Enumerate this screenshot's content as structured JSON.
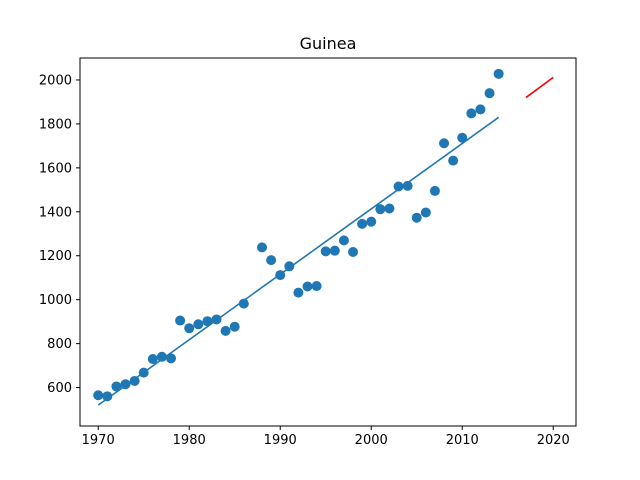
{
  "chart_data": {
    "type": "scatter",
    "title": "Guinea",
    "xlabel": "",
    "ylabel": "",
    "xlim": [
      1968,
      2022.5
    ],
    "ylim": [
      425,
      2100
    ],
    "x_ticks": [
      "1970",
      "1980",
      "1990",
      "2000",
      "2010",
      "2020"
    ],
    "y_ticks": [
      "600",
      "800",
      "1000",
      "1200",
      "1400",
      "1600",
      "1800",
      "2000"
    ],
    "grid": false,
    "colors": {
      "points": "#1f77b4",
      "fit_line": "#1f77b4",
      "forecast_line": "#ff0000"
    },
    "series": [
      {
        "kind": "points",
        "x": [
          1970,
          1971,
          1972,
          1973,
          1974,
          1975,
          1976,
          1977,
          1978,
          1979,
          1980,
          1981,
          1982,
          1983,
          1984,
          1985,
          1986,
          1987,
          1988,
          1989,
          1990,
          1991,
          1992,
          1993,
          1994,
          1995,
          1996,
          1997,
          1998,
          1999,
          2000,
          2001,
          2002,
          2003,
          2004,
          2005,
          2006,
          2007,
          2008,
          2009,
          2010,
          2011,
          2012,
          2013,
          2014
        ],
        "y": [
          565,
          560,
          605,
          615,
          630,
          668,
          730,
          740,
          733,
          905,
          870,
          888,
          902,
          910,
          858,
          877,
          982,
          null,
          1238,
          1180,
          1112,
          1152,
          1032,
          1060,
          1062,
          1220,
          1223,
          1270,
          1217,
          1345,
          1355,
          1412,
          1415,
          1515,
          1518,
          1373,
          1397,
          1495,
          1712,
          1633,
          1737,
          1848,
          1866,
          1940,
          2028
        ]
      },
      {
        "kind": "fit_line",
        "x": [
          1970,
          2014
        ],
        "y": [
          520,
          1830
        ]
      },
      {
        "kind": "forecast_line",
        "x": [
          2017,
          2020
        ],
        "y": [
          1920,
          2012
        ]
      }
    ]
  }
}
